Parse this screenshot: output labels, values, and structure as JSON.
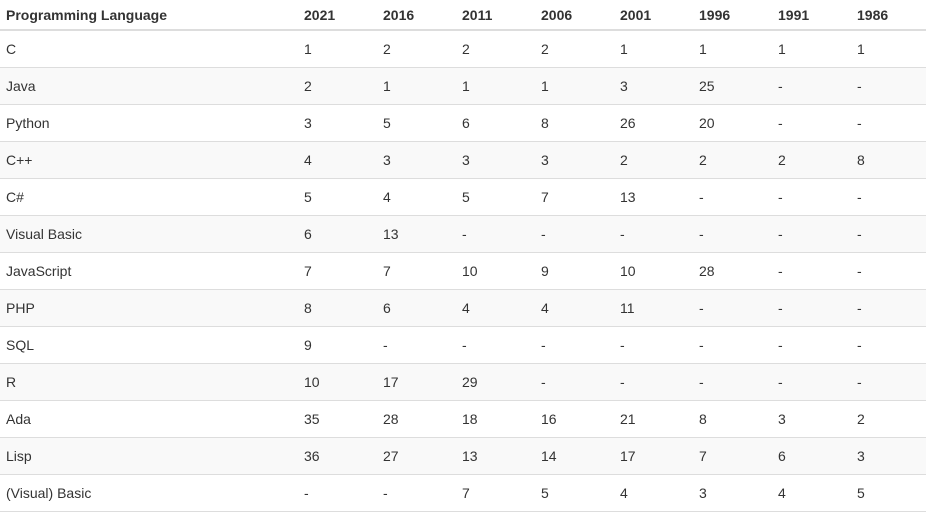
{
  "table": {
    "headers": [
      "Programming Language",
      "2021",
      "2016",
      "2011",
      "2006",
      "2001",
      "1996",
      "1991",
      "1986"
    ],
    "rows": [
      [
        "C",
        1,
        2,
        2,
        2,
        1,
        1,
        1,
        1
      ],
      [
        "Java",
        2,
        1,
        1,
        1,
        3,
        25,
        "-",
        "-"
      ],
      [
        "Python",
        3,
        5,
        6,
        8,
        26,
        20,
        "-",
        "-"
      ],
      [
        "C++",
        4,
        3,
        3,
        3,
        2,
        2,
        2,
        8
      ],
      [
        "C#",
        5,
        4,
        5,
        7,
        13,
        "-",
        "-",
        "-"
      ],
      [
        "Visual Basic",
        6,
        13,
        "-",
        "-",
        "-",
        "-",
        "-",
        "-"
      ],
      [
        "JavaScript",
        7,
        7,
        10,
        9,
        10,
        28,
        "-",
        "-"
      ],
      [
        "PHP",
        8,
        6,
        4,
        4,
        11,
        "-",
        "-",
        "-"
      ],
      [
        "SQL",
        9,
        "-",
        "-",
        "-",
        "-",
        "-",
        "-",
        "-"
      ],
      [
        "R",
        10,
        17,
        29,
        "-",
        "-",
        "-",
        "-",
        "-"
      ],
      [
        "Ada",
        35,
        28,
        18,
        16,
        21,
        8,
        3,
        2
      ],
      [
        "Lisp",
        36,
        27,
        13,
        14,
        17,
        7,
        6,
        3
      ],
      [
        "(Visual) Basic",
        "-",
        "-",
        7,
        5,
        4,
        3,
        4,
        5
      ]
    ]
  }
}
